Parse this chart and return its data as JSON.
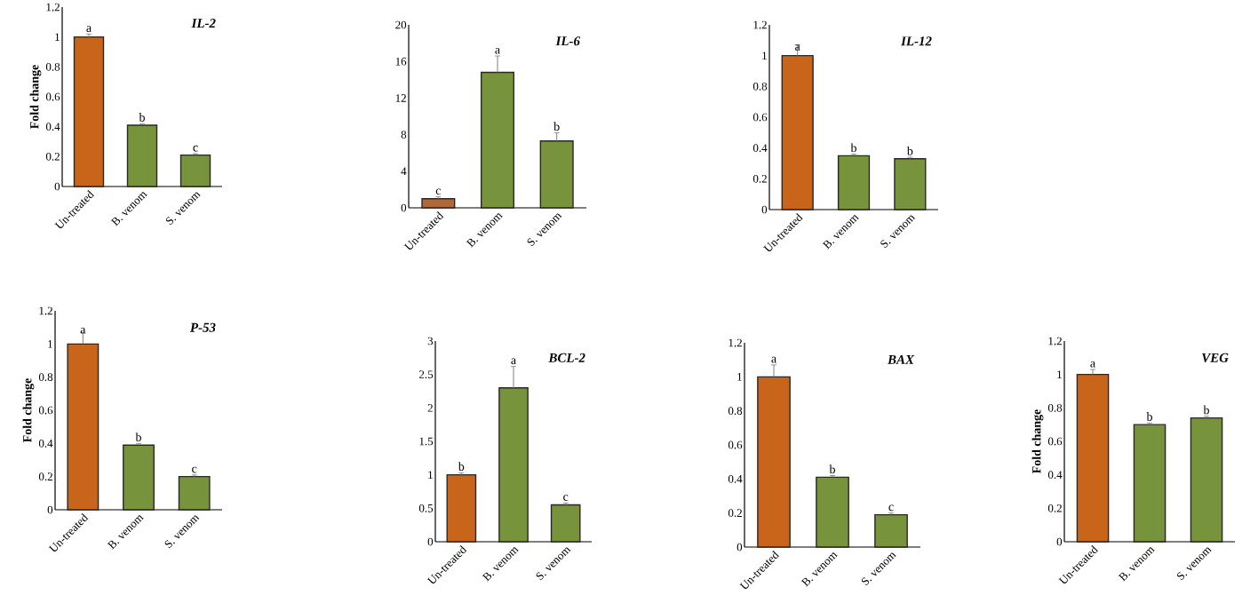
{
  "chart_data": [
    {
      "type": "bar",
      "title": "IL-2",
      "ylabel": "Fold change",
      "categories": [
        "Un-treated",
        "B. venom",
        "S. venom"
      ],
      "values": [
        1.0,
        0.41,
        0.21
      ],
      "errors": [
        0.02,
        0.01,
        0.01
      ],
      "colors": [
        "#c8651b",
        "#77933c",
        "#77933c"
      ],
      "ylim": [
        0,
        1.2
      ],
      "yticks": [
        0,
        0.2,
        0.4,
        0.6,
        0.8,
        1,
        1.2
      ],
      "annotations": [
        {
          "text": "a",
          "x": "Un-treated",
          "y": 1.02
        },
        {
          "text": "b",
          "x": "B. venom",
          "y": 0.42
        },
        {
          "text": "c",
          "x": "S. venom",
          "y": 0.22
        }
      ]
    },
    {
      "type": "bar",
      "title": "IL-6",
      "categories": [
        "Un-treated",
        "B. venom",
        "S. venom"
      ],
      "values": [
        1.0,
        14.8,
        7.3
      ],
      "errors": [
        0.2,
        1.8,
        0.9
      ],
      "colors": [
        "#b0683a",
        "#77933c",
        "#77933c"
      ],
      "ylim": [
        0,
        20
      ],
      "yticks": [
        0,
        4,
        8,
        12,
        16,
        20
      ],
      "annotations": [
        {
          "text": "c",
          "x": "Un-treated",
          "y": 1.2
        },
        {
          "text": "a",
          "x": "B. venom",
          "y": 16.6
        },
        {
          "text": "b",
          "x": "S. venom",
          "y": 8.2
        }
      ]
    },
    {
      "type": "bar",
      "title": "IL-12",
      "categories": [
        "Un-treated",
        "B. venom",
        "S. venom"
      ],
      "values": [
        1.0,
        0.35,
        0.33
      ],
      "errors": [
        0.07,
        0.01,
        0.01
      ],
      "colors": [
        "#c8651b",
        "#77933c",
        "#77933c"
      ],
      "ylim": [
        0,
        1.2
      ],
      "yticks": [
        0,
        0.2,
        0.4,
        0.6,
        0.8,
        1,
        1.2
      ],
      "annotations": [
        {
          "text": "a",
          "x": "Un-treated",
          "y": 1.02
        },
        {
          "text": "b",
          "x": "B. venom",
          "y": 0.36
        },
        {
          "text": "b",
          "x": "S. venom",
          "y": 0.34
        }
      ]
    },
    {
      "type": "bar",
      "title": "P-53",
      "ylabel": "Fold change",
      "categories": [
        "Un-treated",
        "B. venom",
        "S. venom"
      ],
      "values": [
        1.0,
        0.39,
        0.2
      ],
      "errors": [
        0.07,
        0.01,
        0.01
      ],
      "colors": [
        "#c8651b",
        "#77933c",
        "#77933c"
      ],
      "ylim": [
        0,
        1.2
      ],
      "yticks": [
        0,
        0.2,
        0.4,
        0.6,
        0.8,
        1,
        1.2
      ],
      "annotations": [
        {
          "text": "a",
          "x": "Un-treated",
          "y": 1.05
        },
        {
          "text": "b",
          "x": "B. venom",
          "y": 0.4
        },
        {
          "text": "c",
          "x": "S. venom",
          "y": 0.21
        }
      ]
    },
    {
      "type": "bar",
      "title": "BCL-2",
      "categories": [
        "Un-treated",
        "B. venom",
        "S. venom"
      ],
      "values": [
        1.0,
        2.3,
        0.55
      ],
      "errors": [
        0.03,
        0.32,
        0.03
      ],
      "colors": [
        "#c8651b",
        "#77933c",
        "#77933c"
      ],
      "ylim": [
        0,
        3
      ],
      "yticks": [
        0,
        0.5,
        1,
        1.5,
        2,
        2.5,
        3
      ],
      "annotations": [
        {
          "text": "b",
          "x": "Un-treated",
          "y": 1.03
        },
        {
          "text": "a",
          "x": "B. venom",
          "y": 2.62
        },
        {
          "text": "c",
          "x": "S. venom",
          "y": 0.58
        }
      ]
    },
    {
      "type": "bar",
      "title": "BAX",
      "categories": [
        "Un-treated",
        "B. venom",
        "S. venom"
      ],
      "values": [
        1.0,
        0.41,
        0.19
      ],
      "errors": [
        0.07,
        0.01,
        0.01
      ],
      "colors": [
        "#c8651b",
        "#77933c",
        "#77933c"
      ],
      "ylim": [
        0,
        1.2
      ],
      "yticks": [
        0,
        0.2,
        0.4,
        0.6,
        0.8,
        1,
        1.2
      ],
      "annotations": [
        {
          "text": "a",
          "x": "Un-treated",
          "y": 1.07
        },
        {
          "text": "b",
          "x": "B. venom",
          "y": 0.42
        },
        {
          "text": "c",
          "x": "S. venom",
          "y": 0.2
        }
      ]
    },
    {
      "type": "bar",
      "title": "VEG",
      "ylabel": "Fold change",
      "categories": [
        "Un-treated",
        "B. venom",
        "S. venom"
      ],
      "values": [
        1.0,
        0.7,
        0.74
      ],
      "errors": [
        0.03,
        0.01,
        0.01
      ],
      "colors": [
        "#c8651b",
        "#77933c",
        "#77933c"
      ],
      "ylim": [
        0,
        1.2
      ],
      "yticks": [
        0,
        0.2,
        0.4,
        0.6,
        0.8,
        1,
        1.2
      ],
      "annotations": [
        {
          "text": "a",
          "x": "Un-treated",
          "y": 1.03
        },
        {
          "text": "b",
          "x": "B. venom",
          "y": 0.71
        },
        {
          "text": "b",
          "x": "S. venom",
          "y": 0.75
        }
      ]
    }
  ]
}
